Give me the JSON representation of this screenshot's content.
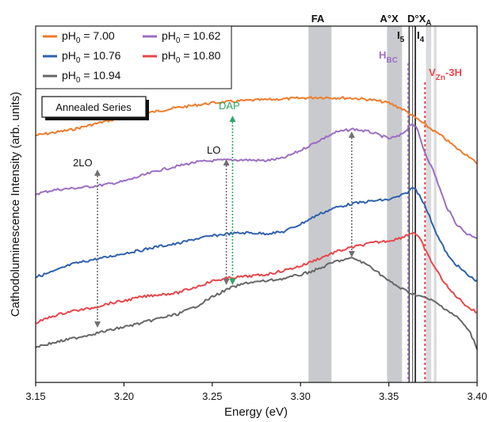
{
  "chart_data": {
    "type": "line",
    "xlabel": "Energy (eV)",
    "ylabel": "Cathodoluminescence Intensity (arb. units)",
    "xlim": [
      3.15,
      3.4
    ],
    "x_ticks": [
      "3.15",
      "3.20",
      "3.25",
      "3.30",
      "3.35",
      "3.40"
    ],
    "y_ticks_shown": false,
    "inset_label": "Annealed Series",
    "legend_position": "top-left",
    "series": [
      {
        "name": "pH0 = 7.00",
        "base": "pH",
        "sub": "0",
        "value": " = 7.00",
        "color": "#f07a2a",
        "points": [
          [
            3.15,
            171
          ],
          [
            3.17,
            164
          ],
          [
            3.19,
            153
          ],
          [
            3.21,
            144
          ],
          [
            3.23,
            136
          ],
          [
            3.25,
            130
          ],
          [
            3.27,
            127
          ],
          [
            3.29,
            125
          ],
          [
            3.31,
            123
          ],
          [
            3.33,
            124
          ],
          [
            3.34,
            126
          ],
          [
            3.35,
            130
          ],
          [
            3.358,
            138
          ],
          [
            3.362,
            144
          ],
          [
            3.366,
            150
          ],
          [
            3.372,
            160
          ],
          [
            3.38,
            172
          ],
          [
            3.39,
            190
          ],
          [
            3.396,
            198
          ],
          [
            3.4,
            208
          ]
        ]
      },
      {
        "name": "pH0 = 10.62",
        "base": "pH",
        "sub": "0",
        "value": " = 10.62",
        "color": "#9b6ec2",
        "points": [
          [
            3.15,
            245
          ],
          [
            3.16,
            240
          ],
          [
            3.17,
            238
          ],
          [
            3.18,
            236
          ],
          [
            3.19,
            233
          ],
          [
            3.2,
            229
          ],
          [
            3.21,
            222
          ],
          [
            3.22,
            215
          ],
          [
            3.23,
            210
          ],
          [
            3.24,
            205
          ],
          [
            3.25,
            203
          ],
          [
            3.26,
            202
          ],
          [
            3.27,
            202
          ],
          [
            3.28,
            203
          ],
          [
            3.29,
            200
          ],
          [
            3.3,
            190
          ],
          [
            3.31,
            178
          ],
          [
            3.32,
            167
          ],
          [
            3.33,
            163
          ],
          [
            3.34,
            167
          ],
          [
            3.35,
            175
          ],
          [
            3.356,
            172
          ],
          [
            3.36,
            164
          ],
          [
            3.363,
            155
          ],
          [
            3.366,
            163
          ],
          [
            3.37,
            190
          ],
          [
            3.376,
            220
          ],
          [
            3.382,
            258
          ],
          [
            3.388,
            282
          ],
          [
            3.394,
            295
          ],
          [
            3.4,
            300
          ]
        ]
      },
      {
        "name": "pH0 = 10.76",
        "base": "pH",
        "sub": "0",
        "value": " = 10.76",
        "color": "#2f61ae",
        "points": [
          [
            3.15,
            350
          ],
          [
            3.16,
            343
          ],
          [
            3.17,
            334
          ],
          [
            3.18,
            329
          ],
          [
            3.19,
            325
          ],
          [
            3.2,
            320
          ],
          [
            3.21,
            316
          ],
          [
            3.22,
            311
          ],
          [
            3.23,
            308
          ],
          [
            3.24,
            302
          ],
          [
            3.25,
            298
          ],
          [
            3.26,
            295
          ],
          [
            3.27,
            294
          ],
          [
            3.28,
            295
          ],
          [
            3.29,
            293
          ],
          [
            3.3,
            283
          ],
          [
            3.31,
            271
          ],
          [
            3.32,
            262
          ],
          [
            3.33,
            257
          ],
          [
            3.34,
            254
          ],
          [
            3.35,
            252
          ],
          [
            3.356,
            248
          ],
          [
            3.36,
            244
          ],
          [
            3.364,
            236
          ],
          [
            3.368,
            248
          ],
          [
            3.372,
            268
          ],
          [
            3.378,
            300
          ],
          [
            3.384,
            325
          ],
          [
            3.39,
            338
          ],
          [
            3.395,
            348
          ],
          [
            3.4,
            355
          ]
        ]
      },
      {
        "name": "pH0 = 10.80",
        "base": "pH",
        "sub": "0",
        "value": " = 10.80",
        "color": "#e8464b",
        "points": [
          [
            3.15,
            408
          ],
          [
            3.16,
            399
          ],
          [
            3.17,
            393
          ],
          [
            3.18,
            390
          ],
          [
            3.19,
            384
          ],
          [
            3.2,
            380
          ],
          [
            3.21,
            375
          ],
          [
            3.22,
            372
          ],
          [
            3.23,
            370
          ],
          [
            3.24,
            363
          ],
          [
            3.25,
            355
          ],
          [
            3.26,
            351
          ],
          [
            3.27,
            349
          ],
          [
            3.28,
            347
          ],
          [
            3.29,
            342
          ],
          [
            3.3,
            336
          ],
          [
            3.31,
            327
          ],
          [
            3.32,
            318
          ],
          [
            3.33,
            312
          ],
          [
            3.34,
            307
          ],
          [
            3.35,
            304
          ],
          [
            3.356,
            301
          ],
          [
            3.36,
            297
          ],
          [
            3.364,
            293
          ],
          [
            3.368,
            303
          ],
          [
            3.372,
            322
          ],
          [
            3.378,
            345
          ],
          [
            3.384,
            365
          ],
          [
            3.39,
            378
          ],
          [
            3.395,
            388
          ],
          [
            3.4,
            395
          ]
        ]
      },
      {
        "name": "pH0 = 10.94",
        "base": "pH",
        "sub": "0",
        "value": " = 10.94",
        "color": "#666666",
        "points": [
          [
            3.15,
            438
          ],
          [
            3.16,
            433
          ],
          [
            3.17,
            428
          ],
          [
            3.18,
            423
          ],
          [
            3.19,
            418
          ],
          [
            3.2,
            413
          ],
          [
            3.21,
            408
          ],
          [
            3.22,
            402
          ],
          [
            3.23,
            397
          ],
          [
            3.24,
            388
          ],
          [
            3.25,
            375
          ],
          [
            3.26,
            364
          ],
          [
            3.27,
            357
          ],
          [
            3.28,
            355
          ],
          [
            3.29,
            352
          ],
          [
            3.3,
            347
          ],
          [
            3.31,
            340
          ],
          [
            3.32,
            330
          ],
          [
            3.33,
            326
          ],
          [
            3.34,
            337
          ],
          [
            3.35,
            355
          ],
          [
            3.356,
            363
          ],
          [
            3.362,
            370
          ],
          [
            3.368,
            374
          ],
          [
            3.375,
            380
          ],
          [
            3.382,
            390
          ],
          [
            3.39,
            403
          ],
          [
            3.396,
            420
          ],
          [
            3.4,
            440
          ]
        ]
      }
    ],
    "bands": [
      {
        "label": "FA",
        "x0": 3.3045,
        "x1": 3.3175
      },
      {
        "label": "A°X",
        "x0": 3.349,
        "x1": 3.3575
      }
    ],
    "annotation_labels": {
      "FA": "FA",
      "AX": "A°X",
      "DX": "D°X",
      "DX_sub": "A",
      "I5": "I",
      "I5_sub": "5",
      "I4": "I",
      "I4_sub": "4",
      "HBC": "H",
      "HBC_sub": "BC",
      "VZn": "V",
      "VZn_sub": "Zn",
      "VZn_tail": "-3H",
      "DAP": "DAP",
      "LO": "LO",
      "2LO": "2LO"
    },
    "annotation_lines": {
      "I5": 3.3615,
      "I4": 3.365,
      "HBC": 3.361,
      "VZn": 3.3705
    },
    "phonon_markers": [
      {
        "label": "2LO",
        "x": 3.185
      },
      {
        "label": "LO",
        "x": 3.258
      },
      {
        "label": "DAP",
        "x": 3.261
      },
      {
        "label": "",
        "x": 3.329
      }
    ],
    "colors": {
      "band_gray": "#c8cacd",
      "hbc": "#9b6ec2",
      "vzn": "#e8464b",
      "dap": "#2ea865",
      "arrow_gray": "#707070"
    }
  }
}
